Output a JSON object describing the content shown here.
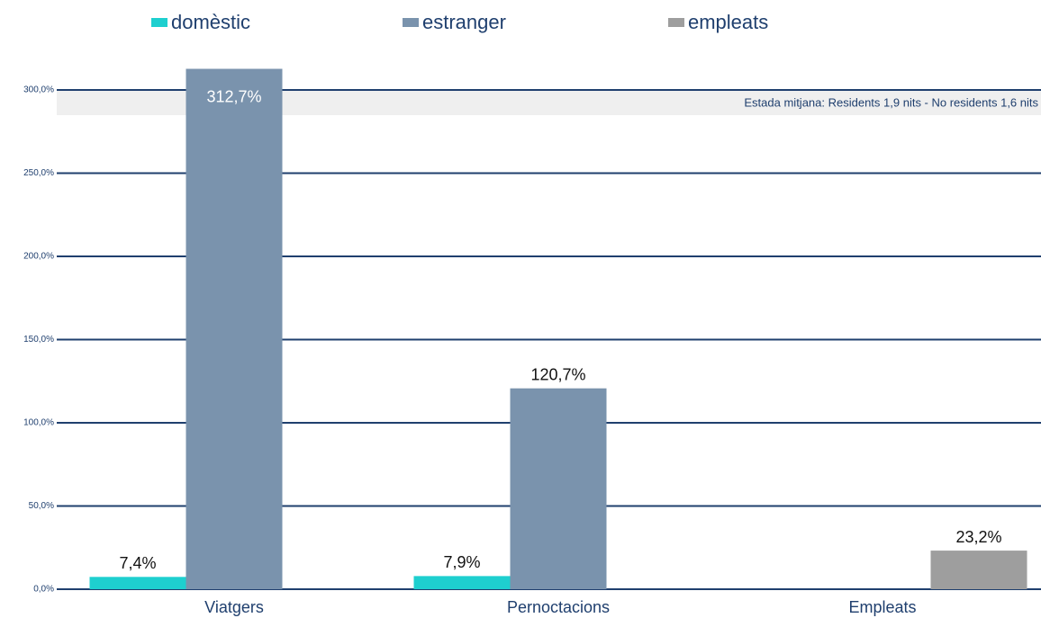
{
  "chart_data": {
    "type": "bar",
    "categories": [
      "Viatgers",
      "Pernoctacions",
      "Empleats"
    ],
    "series": [
      {
        "name": "domèstic",
        "color": "#1ecfcf",
        "values": [
          7.4,
          7.9,
          null
        ],
        "value_labels": [
          "7,4%",
          "7,9%",
          null
        ]
      },
      {
        "name": "estranger",
        "color": "#7a93ad",
        "values": [
          312.7,
          120.7,
          null
        ],
        "value_labels": [
          "312,7%",
          "120,7%",
          null
        ]
      },
      {
        "name": "empleats",
        "color": "#9e9e9e",
        "values": [
          null,
          null,
          23.2
        ],
        "value_labels": [
          null,
          null,
          "23,2%"
        ]
      }
    ],
    "ylim": [
      0,
      320
    ],
    "yticks": [
      {
        "value": 0,
        "label": "0,0%"
      },
      {
        "value": 50,
        "label": "50,0%"
      },
      {
        "value": 100,
        "label": "100,0%"
      },
      {
        "value": 150,
        "label": "150,0%"
      },
      {
        "value": 200,
        "label": "200,0%"
      },
      {
        "value": 250,
        "label": "250,0%"
      },
      {
        "value": 300,
        "label": "300,0%"
      }
    ],
    "annotation": "Estada mitjana: Residents 1,9 nits - No residents 1,6 nits",
    "grid": true
  }
}
